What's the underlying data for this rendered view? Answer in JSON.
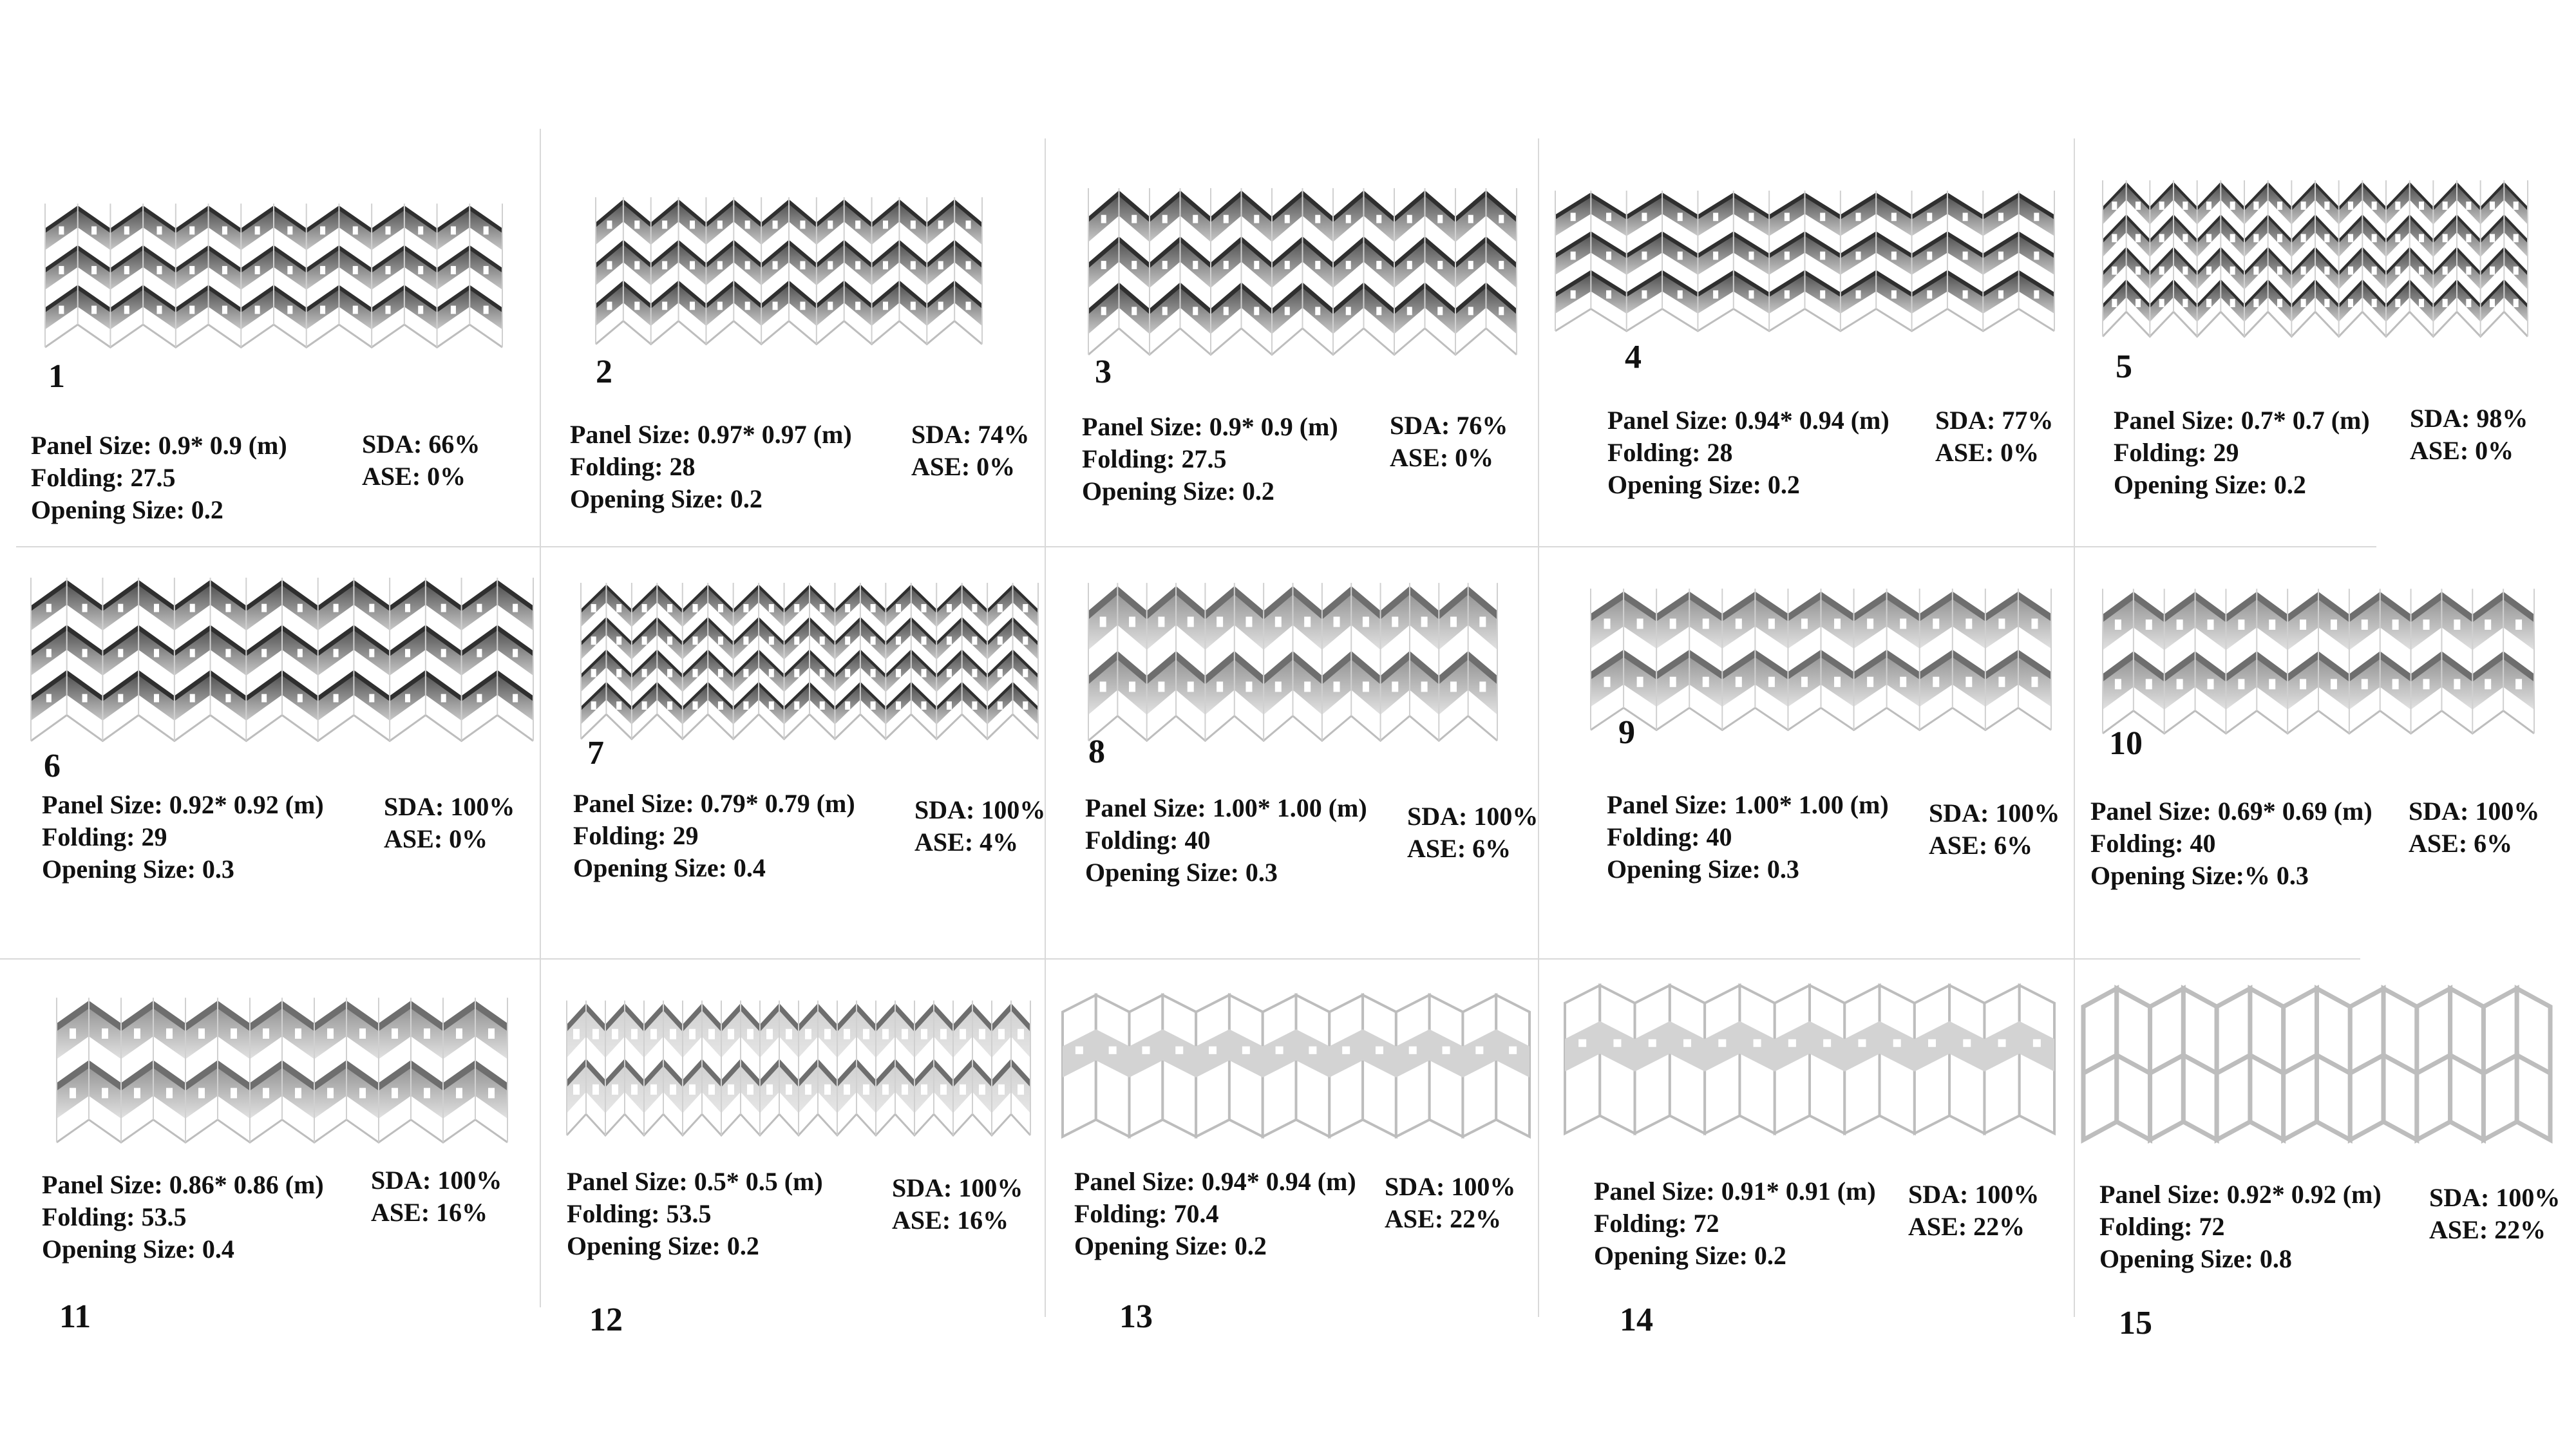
{
  "colors": {
    "dark": "#454545",
    "mid": "#8a8a8a",
    "light": "#c9c9c9",
    "outline": "#bdbdbd",
    "fill": "#d3d3d3"
  },
  "cases": [
    {
      "num": "1",
      "panel": "Panel Size: 0.9* 0.9 (m)",
      "folding": "Folding: 27.5",
      "opening": "Opening Size: 0.2",
      "sda": "SDA: 66%",
      "ase": "ASE: 0%",
      "style": "dark",
      "teeth": 7,
      "rows": 3
    },
    {
      "num": "2",
      "panel": "Panel Size: 0.97* 0.97 (m)",
      "folding": "Folding: 28",
      "opening": "Opening Size: 0.2",
      "sda": "SDA: 74%",
      "ase": "ASE: 0%",
      "style": "dark",
      "teeth": 7,
      "rows": 3
    },
    {
      "num": "3",
      "panel": "Panel Size: 0.9* 0.9 (m)",
      "folding": "Folding: 27.5",
      "opening": "Opening Size: 0.2",
      "sda": "SDA: 76%",
      "ase": "ASE: 0%",
      "style": "dark",
      "teeth": 7,
      "rows": 3
    },
    {
      "num": "4",
      "panel": "Panel Size: 0.94* 0.94 (m)",
      "folding": "Folding: 28",
      "opening": "Opening Size: 0.2",
      "sda": "SDA: 77%",
      "ase": "ASE: 0%",
      "style": "dark",
      "teeth": 7,
      "rows": 3
    },
    {
      "num": "5",
      "panel": "Panel Size: 0.7* 0.7 (m)",
      "folding": "Folding: 29",
      "opening": "Opening Size: 0.2",
      "sda": "SDA: 98%",
      "ase": "ASE: 0%",
      "style": "dark",
      "teeth": 9,
      "rows": 4
    },
    {
      "num": "6",
      "panel": "Panel Size: 0.92* 0.92 (m)",
      "folding": "Folding: 29",
      "opening": "Opening Size: 0.3",
      "sda": "SDA: 100%",
      "ase": "ASE: 0%",
      "style": "dark",
      "teeth": 7,
      "rows": 3
    },
    {
      "num": "7",
      "panel": "Panel Size: 0.79* 0.79 (m)",
      "folding": "Folding: 29",
      "opening": "Opening Size: 0.4",
      "sda": "SDA: 100%",
      "ase": "ASE: 4%",
      "style": "dark",
      "teeth": 9,
      "rows": 4
    },
    {
      "num": "8",
      "panel": "Panel Size: 1.00* 1.00 (m)",
      "folding": "Folding: 40",
      "opening": "Opening Size: 0.3",
      "sda": "SDA: 100%",
      "ase": "ASE: 6%",
      "style": "medium",
      "teeth": 7,
      "rows": 2
    },
    {
      "num": "9",
      "panel": "Panel Size: 1.00* 1.00 (m)",
      "folding": "Folding: 40",
      "opening": "Opening Size: 0.3",
      "sda": "SDA: 100%",
      "ase": "ASE: 6%",
      "style": "medium",
      "teeth": 7,
      "rows": 2
    },
    {
      "num": "10",
      "panel": "Panel Size: 0.69* 0.69 (m)",
      "folding": "Folding: 40",
      "opening": "Opening Size:% 0.3",
      "sda": "SDA: 100%",
      "ase": "ASE: 6%",
      "style": "medium",
      "teeth": 7,
      "rows": 2
    },
    {
      "num": "11",
      "panel": "Panel Size: 0.86* 0.86 (m)",
      "folding": "Folding: 53.5",
      "opening": "Opening Size: 0.4",
      "sda": "SDA: 100%",
      "ase": "ASE: 16%",
      "style": "medium",
      "teeth": 7,
      "rows": 2
    },
    {
      "num": "12",
      "panel": "Panel Size: 0.5* 0.5 (m)",
      "folding": "Folding: 53.5",
      "opening": "Opening Size: 0.2",
      "sda": "SDA: 100%",
      "ase": "ASE: 16%",
      "style": "light",
      "teeth": 12,
      "rows": 2
    },
    {
      "num": "13",
      "panel": "Panel Size: 0.94* 0.94 (m)",
      "folding": "Folding: 70.4",
      "opening": "Opening Size: 0.2",
      "sda": "SDA: 100%",
      "ase": "ASE: 22%",
      "style": "flat",
      "teeth": 7,
      "rows": 2
    },
    {
      "num": "14",
      "panel": "Panel Size: 0.91* 0.91 (m)",
      "folding": "Folding: 72",
      "opening": "Opening Size: 0.2",
      "sda": "SDA: 100%",
      "ase": "ASE: 22%",
      "style": "flat",
      "teeth": 7,
      "rows": 2
    },
    {
      "num": "15",
      "panel": "Panel Size: 0.92* 0.92 (m)",
      "folding": "Folding: 72",
      "opening": "Opening Size: 0.8",
      "sda": "SDA: 100%",
      "ase": "ASE: 22%",
      "style": "open",
      "teeth": 7,
      "rows": 2
    }
  ]
}
